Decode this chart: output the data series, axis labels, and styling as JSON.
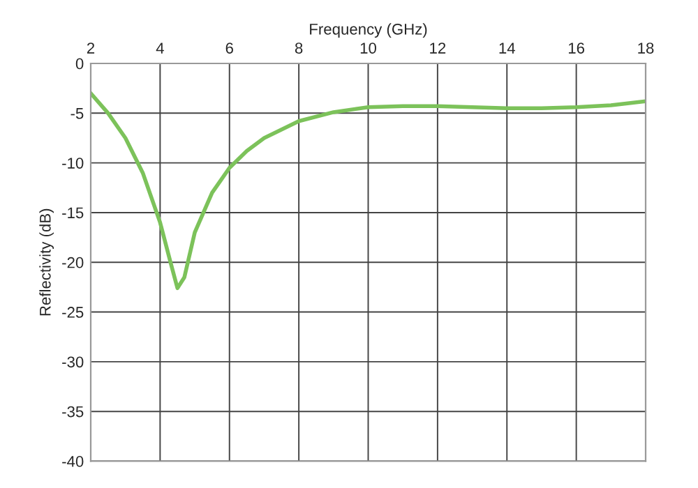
{
  "chart_data": {
    "type": "line",
    "xlabel": "Frequency (GHz)",
    "ylabel": "Reflectivity (dB)",
    "x": [
      2,
      2.5,
      3,
      3.5,
      4,
      4.3,
      4.5,
      4.7,
      5,
      5.5,
      6,
      6.5,
      7,
      8,
      9,
      10,
      11,
      12,
      13,
      14,
      15,
      16,
      17,
      18
    ],
    "series": [
      {
        "color": "#7cc25a",
        "values": [
          -3,
          -5,
          -7.5,
          -11,
          -16,
          -20,
          -22.6,
          -21.5,
          -17,
          -13,
          -10.5,
          -8.8,
          -7.5,
          -5.8,
          -4.9,
          -4.4,
          -4.3,
          -4.3,
          -4.4,
          -4.5,
          -4.5,
          -4.4,
          -4.2,
          -3.8
        ]
      }
    ],
    "xlim": [
      2,
      18
    ],
    "xticks": [
      2,
      4,
      6,
      8,
      10,
      12,
      14,
      16,
      18
    ],
    "ylim": [
      -40,
      0
    ],
    "yticks": [
      -40,
      -35,
      -30,
      -25,
      -20,
      -15,
      -10,
      -5,
      0
    ],
    "grid": true,
    "legend": false,
    "marker": "none",
    "line_style": "solid"
  }
}
